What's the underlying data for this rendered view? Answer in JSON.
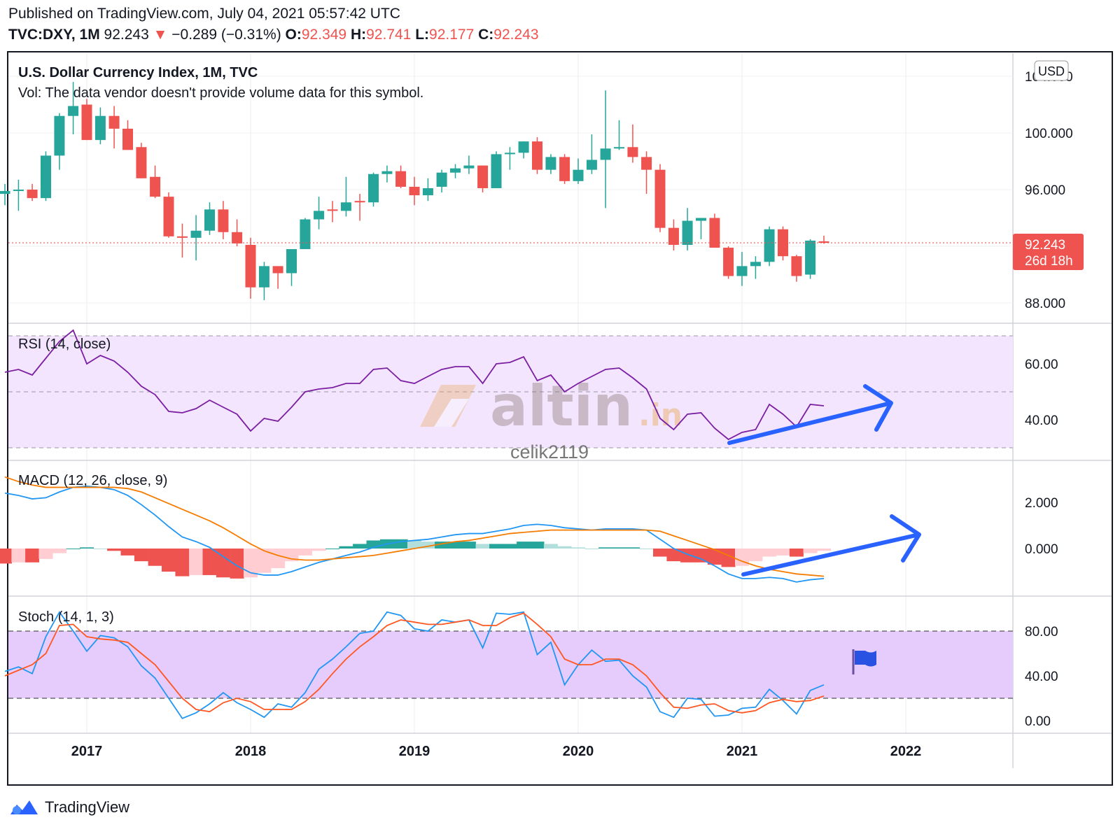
{
  "header": {
    "published": "Published on TradingView.com, July 04, 2021 05:57:42 UTC",
    "symbol": "TVC:DXY, 1M",
    "last": "92.243",
    "arrow": "▼",
    "change": "−0.289 (−0.31%)",
    "o_label": "O:",
    "o_val": "92.349",
    "h_label": "H:",
    "h_val": "92.741",
    "l_label": "L:",
    "l_val": "92.177",
    "c_label": "C:",
    "c_val": "92.243"
  },
  "main_pane": {
    "title": "U.S. Dollar Currency Index, 1M, TVC",
    "vol_note": "Vol: The data vendor doesn't provide volume data for this symbol.",
    "currency_badge": "USD",
    "price_label": "92.243",
    "countdown_label": "26d 18h",
    "top_tick_partial": "104.000"
  },
  "watermark": {
    "brand": "altin",
    "suffix": ".in",
    "user": "celik2119"
  },
  "footer": {
    "brand": "TradingView"
  },
  "colors": {
    "up": "#26a69a",
    "down": "#ef5350",
    "rsi_line": "#7b1fa2",
    "rsi_band": "#f3e5fd",
    "macd_line": "#2196f3",
    "signal_line": "#f57c00",
    "stoch_k": "#2196f3",
    "stoch_d": "#ff5722",
    "stoch_band": "#e6ccfc",
    "annotation_arrow": "#2962ff",
    "price_badge": "#ef5350"
  },
  "chart_data": [
    {
      "type": "candlestick",
      "title": "U.S. Dollar Currency Index, 1M, TVC",
      "x_ticks": [
        "2017",
        "2018",
        "2019",
        "2020",
        "2021",
        "2022"
      ],
      "y_ticks": [
        "100.000",
        "96.000",
        "92.243",
        "88.000"
      ],
      "ylim": [
        86.8,
        104.0
      ],
      "candles": [
        {
          "x": 2016.5,
          "o": 95.7,
          "h": 96.4,
          "l": 94.9,
          "c": 95.9
        },
        {
          "x": 2016.583,
          "o": 95.9,
          "h": 96.7,
          "l": 94.5,
          "c": 96.0
        },
        {
          "x": 2016.667,
          "o": 96.0,
          "h": 96.4,
          "l": 95.2,
          "c": 95.4
        },
        {
          "x": 2016.75,
          "o": 95.4,
          "h": 98.7,
          "l": 95.2,
          "c": 98.4
        },
        {
          "x": 2016.833,
          "o": 98.4,
          "h": 101.4,
          "l": 97.4,
          "c": 101.2
        },
        {
          "x": 2016.917,
          "o": 101.2,
          "h": 103.6,
          "l": 99.9,
          "c": 101.9
        },
        {
          "x": 2017.0,
          "o": 102.0,
          "h": 102.4,
          "l": 99.5,
          "c": 99.5
        },
        {
          "x": 2017.083,
          "o": 99.5,
          "h": 101.8,
          "l": 99.2,
          "c": 101.2
        },
        {
          "x": 2017.167,
          "o": 101.2,
          "h": 101.9,
          "l": 98.9,
          "c": 100.3
        },
        {
          "x": 2017.25,
          "o": 100.3,
          "h": 100.9,
          "l": 98.8,
          "c": 98.8
        },
        {
          "x": 2017.333,
          "o": 99.0,
          "h": 99.3,
          "l": 96.8,
          "c": 96.8
        },
        {
          "x": 2017.417,
          "o": 96.9,
          "h": 97.7,
          "l": 95.4,
          "c": 95.5
        },
        {
          "x": 2017.5,
          "o": 95.5,
          "h": 95.8,
          "l": 92.6,
          "c": 92.7
        },
        {
          "x": 2017.583,
          "o": 92.7,
          "h": 93.6,
          "l": 91.2,
          "c": 92.6
        },
        {
          "x": 2017.667,
          "o": 92.6,
          "h": 94.2,
          "l": 91.0,
          "c": 93.1
        },
        {
          "x": 2017.75,
          "o": 93.1,
          "h": 95.1,
          "l": 92.8,
          "c": 94.6
        },
        {
          "x": 2017.833,
          "o": 94.6,
          "h": 95.2,
          "l": 92.5,
          "c": 93.0
        },
        {
          "x": 2017.917,
          "o": 93.0,
          "h": 93.9,
          "l": 92.0,
          "c": 92.2
        },
        {
          "x": 2018.0,
          "o": 92.1,
          "h": 92.6,
          "l": 88.3,
          "c": 89.1
        },
        {
          "x": 2018.083,
          "o": 89.1,
          "h": 90.9,
          "l": 88.2,
          "c": 90.6
        },
        {
          "x": 2018.167,
          "o": 90.6,
          "h": 90.6,
          "l": 89.0,
          "c": 90.1
        },
        {
          "x": 2018.25,
          "o": 90.1,
          "h": 91.8,
          "l": 89.2,
          "c": 91.8
        },
        {
          "x": 2018.333,
          "o": 91.8,
          "h": 94.0,
          "l": 91.8,
          "c": 93.9
        },
        {
          "x": 2018.417,
          "o": 93.9,
          "h": 95.5,
          "l": 93.2,
          "c": 94.5
        },
        {
          "x": 2018.5,
          "o": 94.6,
          "h": 95.2,
          "l": 93.7,
          "c": 94.5
        },
        {
          "x": 2018.583,
          "o": 94.5,
          "h": 96.9,
          "l": 94.1,
          "c": 95.1
        },
        {
          "x": 2018.667,
          "o": 95.2,
          "h": 95.7,
          "l": 93.8,
          "c": 95.1
        },
        {
          "x": 2018.75,
          "o": 95.1,
          "h": 97.2,
          "l": 94.8,
          "c": 97.1
        },
        {
          "x": 2018.833,
          "o": 97.1,
          "h": 97.7,
          "l": 96.5,
          "c": 97.3
        },
        {
          "x": 2018.917,
          "o": 97.3,
          "h": 97.7,
          "l": 96.1,
          "c": 96.2
        },
        {
          "x": 2019.0,
          "o": 96.2,
          "h": 96.9,
          "l": 94.9,
          "c": 95.6
        },
        {
          "x": 2019.083,
          "o": 95.6,
          "h": 96.8,
          "l": 95.2,
          "c": 96.1
        },
        {
          "x": 2019.167,
          "o": 96.2,
          "h": 97.4,
          "l": 95.8,
          "c": 97.2
        },
        {
          "x": 2019.25,
          "o": 97.2,
          "h": 97.8,
          "l": 96.8,
          "c": 97.5
        },
        {
          "x": 2019.333,
          "o": 97.5,
          "h": 98.4,
          "l": 97.1,
          "c": 97.7
        },
        {
          "x": 2019.417,
          "o": 97.7,
          "h": 97.7,
          "l": 95.8,
          "c": 96.1
        },
        {
          "x": 2019.5,
          "o": 96.1,
          "h": 98.7,
          "l": 96.1,
          "c": 98.5
        },
        {
          "x": 2019.583,
          "o": 98.5,
          "h": 99.0,
          "l": 97.4,
          "c": 98.6
        },
        {
          "x": 2019.667,
          "o": 98.6,
          "h": 99.4,
          "l": 98.2,
          "c": 99.4
        },
        {
          "x": 2019.75,
          "o": 99.4,
          "h": 99.7,
          "l": 97.1,
          "c": 97.4
        },
        {
          "x": 2019.833,
          "o": 97.4,
          "h": 98.5,
          "l": 97.1,
          "c": 98.3
        },
        {
          "x": 2019.917,
          "o": 98.3,
          "h": 98.5,
          "l": 96.4,
          "c": 96.6
        },
        {
          "x": 2020.0,
          "o": 96.6,
          "h": 98.2,
          "l": 96.4,
          "c": 97.4
        },
        {
          "x": 2020.083,
          "o": 97.4,
          "h": 99.9,
          "l": 97.1,
          "c": 98.1
        },
        {
          "x": 2020.167,
          "o": 98.1,
          "h": 103.0,
          "l": 94.7,
          "c": 98.9
        },
        {
          "x": 2020.25,
          "o": 98.9,
          "h": 100.9,
          "l": 98.8,
          "c": 99.0
        },
        {
          "x": 2020.333,
          "o": 99.0,
          "h": 100.6,
          "l": 97.9,
          "c": 98.3
        },
        {
          "x": 2020.417,
          "o": 98.3,
          "h": 98.7,
          "l": 95.7,
          "c": 97.4
        },
        {
          "x": 2020.5,
          "o": 97.4,
          "h": 97.8,
          "l": 93.0,
          "c": 93.3
        },
        {
          "x": 2020.583,
          "o": 93.3,
          "h": 93.9,
          "l": 91.7,
          "c": 92.1
        },
        {
          "x": 2020.667,
          "o": 92.1,
          "h": 94.7,
          "l": 91.7,
          "c": 93.8
        },
        {
          "x": 2020.75,
          "o": 93.8,
          "h": 94.0,
          "l": 92.5,
          "c": 94.0
        },
        {
          "x": 2020.833,
          "o": 94.0,
          "h": 94.3,
          "l": 91.9,
          "c": 91.9
        },
        {
          "x": 2020.917,
          "o": 91.9,
          "h": 92.0,
          "l": 89.7,
          "c": 89.9
        },
        {
          "x": 2021.0,
          "o": 89.9,
          "h": 91.6,
          "l": 89.2,
          "c": 90.6
        },
        {
          "x": 2021.083,
          "o": 90.6,
          "h": 91.3,
          "l": 89.7,
          "c": 90.9
        },
        {
          "x": 2021.167,
          "o": 90.9,
          "h": 93.4,
          "l": 90.6,
          "c": 93.2
        },
        {
          "x": 2021.25,
          "o": 93.2,
          "h": 93.4,
          "l": 91.0,
          "c": 91.3
        },
        {
          "x": 2021.333,
          "o": 91.3,
          "h": 91.4,
          "l": 89.5,
          "c": 89.9
        },
        {
          "x": 2021.417,
          "o": 90.0,
          "h": 92.5,
          "l": 89.7,
          "c": 92.4
        },
        {
          "x": 2021.5,
          "o": 92.349,
          "h": 92.741,
          "l": 92.177,
          "c": 92.243
        }
      ]
    },
    {
      "type": "line",
      "title": "RSI (14, close)",
      "y_ticks": [
        "60.00",
        "40.00"
      ],
      "ylim": [
        20,
        80
      ],
      "band": [
        30,
        70
      ],
      "midline": 50,
      "series": [
        {
          "name": "RSI",
          "x": [
            2016.5,
            2016.583,
            2016.667,
            2016.75,
            2016.833,
            2016.917,
            2017.0,
            2017.083,
            2017.167,
            2017.25,
            2017.333,
            2017.417,
            2017.5,
            2017.583,
            2017.667,
            2017.75,
            2017.833,
            2017.917,
            2018.0,
            2018.083,
            2018.167,
            2018.25,
            2018.333,
            2018.417,
            2018.5,
            2018.583,
            2018.667,
            2018.75,
            2018.833,
            2018.917,
            2019.0,
            2019.083,
            2019.167,
            2019.25,
            2019.333,
            2019.417,
            2019.5,
            2019.583,
            2019.667,
            2019.75,
            2019.833,
            2019.917,
            2020.0,
            2020.083,
            2020.167,
            2020.25,
            2020.333,
            2020.417,
            2020.5,
            2020.583,
            2020.667,
            2020.75,
            2020.833,
            2020.917,
            2021.0,
            2021.083,
            2021.167,
            2021.25,
            2021.333,
            2021.417,
            2021.5
          ],
          "values": [
            57,
            58,
            56,
            62,
            68,
            72,
            60,
            63,
            61,
            57,
            52,
            49,
            43,
            42.5,
            44,
            47,
            44.5,
            42,
            36,
            40.5,
            39.5,
            44.5,
            50,
            51,
            51.5,
            53,
            53,
            58,
            58.5,
            54,
            53,
            55.5,
            58,
            59,
            59,
            53,
            60,
            60.5,
            62.5,
            54,
            56,
            50,
            53,
            55.5,
            58,
            58.5,
            55,
            51,
            40.5,
            36.5,
            42,
            42.5,
            37,
            33,
            35.5,
            36.5,
            45.5,
            42,
            37.5,
            45.5,
            45
          ]
        }
      ]
    },
    {
      "type": "line",
      "title": "MACD (12, 26, close, 9)",
      "y_ticks": [
        "2.000",
        "0.000"
      ],
      "ylim": [
        -2.3,
        3.2
      ],
      "x": [
        2016.5,
        2016.583,
        2016.667,
        2016.75,
        2016.833,
        2016.917,
        2017.0,
        2017.083,
        2017.167,
        2017.25,
        2017.333,
        2017.417,
        2017.5,
        2017.583,
        2017.667,
        2017.75,
        2017.833,
        2017.917,
        2018.0,
        2018.083,
        2018.167,
        2018.25,
        2018.333,
        2018.417,
        2018.5,
        2018.583,
        2018.667,
        2018.75,
        2018.833,
        2018.917,
        2019.0,
        2019.083,
        2019.167,
        2019.25,
        2019.333,
        2019.417,
        2019.5,
        2019.583,
        2019.667,
        2019.75,
        2019.833,
        2019.917,
        2020.0,
        2020.083,
        2020.167,
        2020.25,
        2020.333,
        2020.417,
        2020.5,
        2020.583,
        2020.667,
        2020.75,
        2020.833,
        2020.917,
        2021.0,
        2021.083,
        2021.167,
        2021.25,
        2021.333,
        2021.417,
        2021.5
      ],
      "series": [
        {
          "name": "MACD",
          "values": [
            2.4,
            2.3,
            2.15,
            2.2,
            2.45,
            2.65,
            2.7,
            2.65,
            2.55,
            2.3,
            1.9,
            1.45,
            0.95,
            0.5,
            0.3,
            0.05,
            -0.35,
            -0.75,
            -1.05,
            -1.15,
            -1.15,
            -1.0,
            -0.8,
            -0.6,
            -0.45,
            -0.3,
            -0.15,
            0.05,
            0.2,
            0.3,
            0.35,
            0.4,
            0.5,
            0.6,
            0.65,
            0.65,
            0.75,
            0.85,
            1.0,
            1.05,
            1.0,
            0.9,
            0.85,
            0.8,
            0.85,
            0.85,
            0.85,
            0.8,
            0.4,
            0.0,
            -0.25,
            -0.45,
            -0.75,
            -1.1,
            -1.3,
            -1.3,
            -1.25,
            -1.3,
            -1.45,
            -1.35,
            -1.3
          ]
        },
        {
          "name": "Signal",
          "values": [
            3.1,
            2.9,
            2.75,
            2.65,
            2.65,
            2.65,
            2.65,
            2.65,
            2.65,
            2.6,
            2.45,
            2.2,
            1.95,
            1.7,
            1.45,
            1.2,
            0.9,
            0.55,
            0.2,
            -0.1,
            -0.3,
            -0.45,
            -0.5,
            -0.5,
            -0.45,
            -0.4,
            -0.35,
            -0.3,
            -0.2,
            -0.1,
            0.0,
            0.1,
            0.2,
            0.3,
            0.35,
            0.45,
            0.55,
            0.65,
            0.7,
            0.75,
            0.8,
            0.8,
            0.8,
            0.8,
            0.8,
            0.8,
            0.8,
            0.8,
            0.75,
            0.55,
            0.35,
            0.15,
            -0.05,
            -0.3,
            -0.55,
            -0.75,
            -0.9,
            -1.0,
            -1.1,
            -1.15,
            -1.2
          ]
        },
        {
          "name": "Histogram",
          "values": [
            -0.65,
            -0.6,
            -0.6,
            -0.45,
            -0.2,
            0.0,
            0.05,
            0.0,
            -0.1,
            -0.3,
            -0.55,
            -0.75,
            -1.0,
            -1.2,
            -1.15,
            -1.15,
            -1.25,
            -1.3,
            -1.25,
            -1.05,
            -0.85,
            -0.55,
            -0.3,
            -0.1,
            0.0,
            0.1,
            0.2,
            0.35,
            0.4,
            0.4,
            0.35,
            0.3,
            0.3,
            0.3,
            0.3,
            0.2,
            0.2,
            0.2,
            0.3,
            0.3,
            0.2,
            0.1,
            0.05,
            0.0,
            0.05,
            0.05,
            0.05,
            0.0,
            -0.35,
            -0.55,
            -0.6,
            -0.6,
            -0.7,
            -0.8,
            -0.75,
            -0.55,
            -0.35,
            -0.3,
            -0.35,
            -0.2,
            -0.1
          ]
        }
      ]
    },
    {
      "type": "line",
      "title": "Stoch (14, 1, 3)",
      "y_ticks": [
        "80.00",
        "40.00",
        "0.00"
      ],
      "ylim": [
        -10,
        100
      ],
      "band": [
        20,
        80
      ],
      "series": [
        {
          "name": "%K",
          "values": [
            44,
            48,
            42,
            75,
            97,
            80,
            62,
            76,
            74,
            66,
            49,
            38,
            20,
            2,
            7,
            15,
            25,
            16,
            10,
            3,
            15,
            12,
            25,
            46,
            55,
            66,
            78,
            80,
            97,
            94,
            82,
            80,
            90,
            88,
            90,
            65,
            96,
            95,
            97,
            59,
            70,
            32,
            50,
            63,
            53,
            54,
            40,
            30,
            8,
            3,
            20,
            19,
            4,
            5,
            11,
            12,
            28,
            18,
            6,
            27,
            32
          ]
        },
        {
          "name": "%D",
          "values": [
            40,
            45,
            50,
            60,
            85,
            86,
            75,
            73,
            72,
            70,
            60,
            50,
            35,
            20,
            10,
            8,
            16,
            20,
            17,
            10,
            10,
            10,
            17,
            28,
            42,
            55,
            66,
            75,
            85,
            90,
            88,
            86,
            86,
            88,
            90,
            85,
            85,
            92,
            96,
            86,
            75,
            55,
            50,
            50,
            55,
            55,
            50,
            40,
            25,
            12,
            11,
            14,
            15,
            9,
            7,
            9,
            16,
            19,
            17,
            18,
            22
          ]
        }
      ]
    }
  ]
}
